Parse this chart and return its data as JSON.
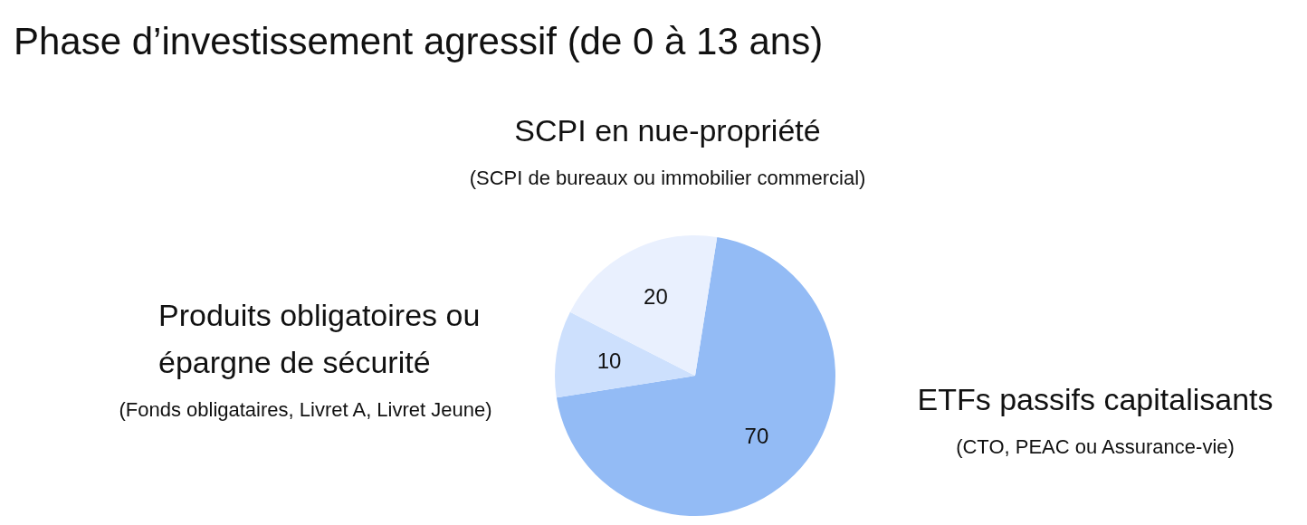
{
  "chart_data": {
    "type": "pie",
    "title": "Phase d’investissement agressif (de 0 à 13 ans)",
    "categories": [
      "ETFs passifs capitalisants",
      "Produits obligatoires ou épargne de sécurité",
      "SCPI en nue-propriété"
    ],
    "values": [
      70,
      10,
      20
    ],
    "colors": [
      "#93bbf5",
      "#cde0fd",
      "#e9f0fe"
    ],
    "data_labels": true,
    "legend": false,
    "annotations": [
      "(CTO, PEAC ou Assurance-vie)",
      "(Fonds obligataires, Livret A, Livret Jeune)",
      "(SCPI de bureaux ou immobilier commercial)"
    ]
  }
}
